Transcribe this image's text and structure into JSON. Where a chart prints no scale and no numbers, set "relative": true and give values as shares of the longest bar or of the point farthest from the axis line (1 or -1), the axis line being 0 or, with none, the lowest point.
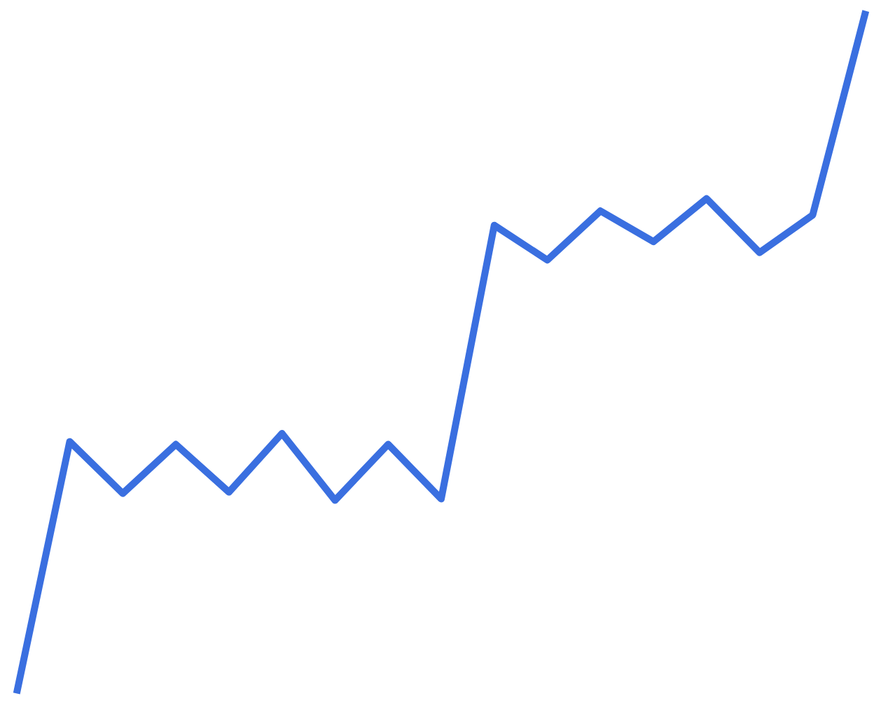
{
  "chart_data": {
    "type": "line",
    "relative": true,
    "categories": [
      null,
      null,
      null,
      null,
      null,
      null,
      null,
      null,
      null,
      null,
      null,
      null,
      null,
      null,
      null,
      null,
      null
    ],
    "series": [
      {
        "color": "#3a6fe0",
        "values": [
          0,
          0.369,
          0.293,
          0.365,
          0.295,
          0.381,
          0.283,
          0.365,
          0.285,
          0.686,
          0.635,
          0.707,
          0.662,
          0.725,
          0.646,
          0.701,
          1
        ]
      }
    ],
    "grid": false
  }
}
